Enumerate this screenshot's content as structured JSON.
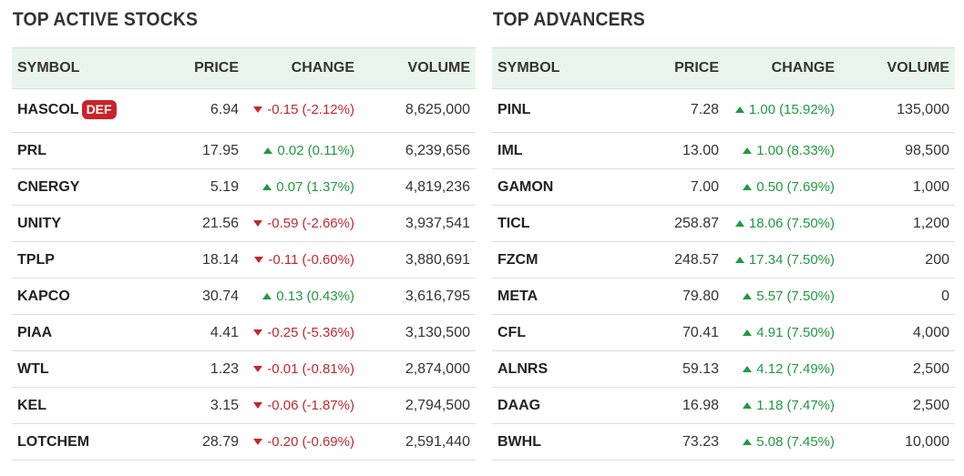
{
  "colors": {
    "up": "#1f9a3f",
    "down": "#c0282f",
    "header_bg": "#eaf4ee",
    "badge": "#c8232b"
  },
  "active": {
    "title": "TOP ACTIVE STOCKS",
    "headers": {
      "symbol": "SYMBOL",
      "price": "PRICE",
      "change": "CHANGE",
      "volume": "VOLUME"
    },
    "rows": [
      {
        "symbol": "HASCOL",
        "badge": "DEF",
        "price": "6.94",
        "dir": "down",
        "change": "-0.15",
        "pct": "(-2.12%)",
        "volume": "8,625,000"
      },
      {
        "symbol": "PRL",
        "price": "17.95",
        "dir": "up",
        "change": "0.02",
        "pct": "(0.11%)",
        "volume": "6,239,656"
      },
      {
        "symbol": "CNERGY",
        "price": "5.19",
        "dir": "up",
        "change": "0.07",
        "pct": "(1.37%)",
        "volume": "4,819,236"
      },
      {
        "symbol": "UNITY",
        "price": "21.56",
        "dir": "down",
        "change": "-0.59",
        "pct": "(-2.66%)",
        "volume": "3,937,541"
      },
      {
        "symbol": "TPLP",
        "price": "18.14",
        "dir": "down",
        "change": "-0.11",
        "pct": "(-0.60%)",
        "volume": "3,880,691"
      },
      {
        "symbol": "KAPCO",
        "price": "30.74",
        "dir": "up",
        "change": "0.13",
        "pct": "(0.43%)",
        "volume": "3,616,795"
      },
      {
        "symbol": "PIAA",
        "price": "4.41",
        "dir": "down",
        "change": "-0.25",
        "pct": "(-5.36%)",
        "volume": "3,130,500"
      },
      {
        "symbol": "WTL",
        "price": "1.23",
        "dir": "down",
        "change": "-0.01",
        "pct": "(-0.81%)",
        "volume": "2,874,000"
      },
      {
        "symbol": "KEL",
        "price": "3.15",
        "dir": "down",
        "change": "-0.06",
        "pct": "(-1.87%)",
        "volume": "2,794,500"
      },
      {
        "symbol": "LOTCHEM",
        "price": "28.79",
        "dir": "down",
        "change": "-0.20",
        "pct": "(-0.69%)",
        "volume": "2,591,440"
      }
    ]
  },
  "advancers": {
    "title": "TOP ADVANCERS",
    "headers": {
      "symbol": "SYMBOL",
      "price": "PRICE",
      "change": "CHANGE",
      "volume": "VOLUME"
    },
    "rows": [
      {
        "symbol": "PINL",
        "price": "7.28",
        "dir": "up",
        "change": "1.00",
        "pct": "(15.92%)",
        "volume": "135,000"
      },
      {
        "symbol": "IML",
        "price": "13.00",
        "dir": "up",
        "change": "1.00",
        "pct": "(8.33%)",
        "volume": "98,500"
      },
      {
        "symbol": "GAMON",
        "price": "7.00",
        "dir": "up",
        "change": "0.50",
        "pct": "(7.69%)",
        "volume": "1,000"
      },
      {
        "symbol": "TICL",
        "price": "258.87",
        "dir": "up",
        "change": "18.06",
        "pct": "(7.50%)",
        "volume": "1,200"
      },
      {
        "symbol": "FZCM",
        "price": "248.57",
        "dir": "up",
        "change": "17.34",
        "pct": "(7.50%)",
        "volume": "200"
      },
      {
        "symbol": "META",
        "price": "79.80",
        "dir": "up",
        "change": "5.57",
        "pct": "(7.50%)",
        "volume": "0"
      },
      {
        "symbol": "CFL",
        "price": "70.41",
        "dir": "up",
        "change": "4.91",
        "pct": "(7.50%)",
        "volume": "4,000"
      },
      {
        "symbol": "ALNRS",
        "price": "59.13",
        "dir": "up",
        "change": "4.12",
        "pct": "(7.49%)",
        "volume": "2,500"
      },
      {
        "symbol": "DAAG",
        "price": "16.98",
        "dir": "up",
        "change": "1.18",
        "pct": "(7.47%)",
        "volume": "2,500"
      },
      {
        "symbol": "BWHL",
        "price": "73.23",
        "dir": "up",
        "change": "5.08",
        "pct": "(7.45%)",
        "volume": "10,000"
      }
    ]
  }
}
